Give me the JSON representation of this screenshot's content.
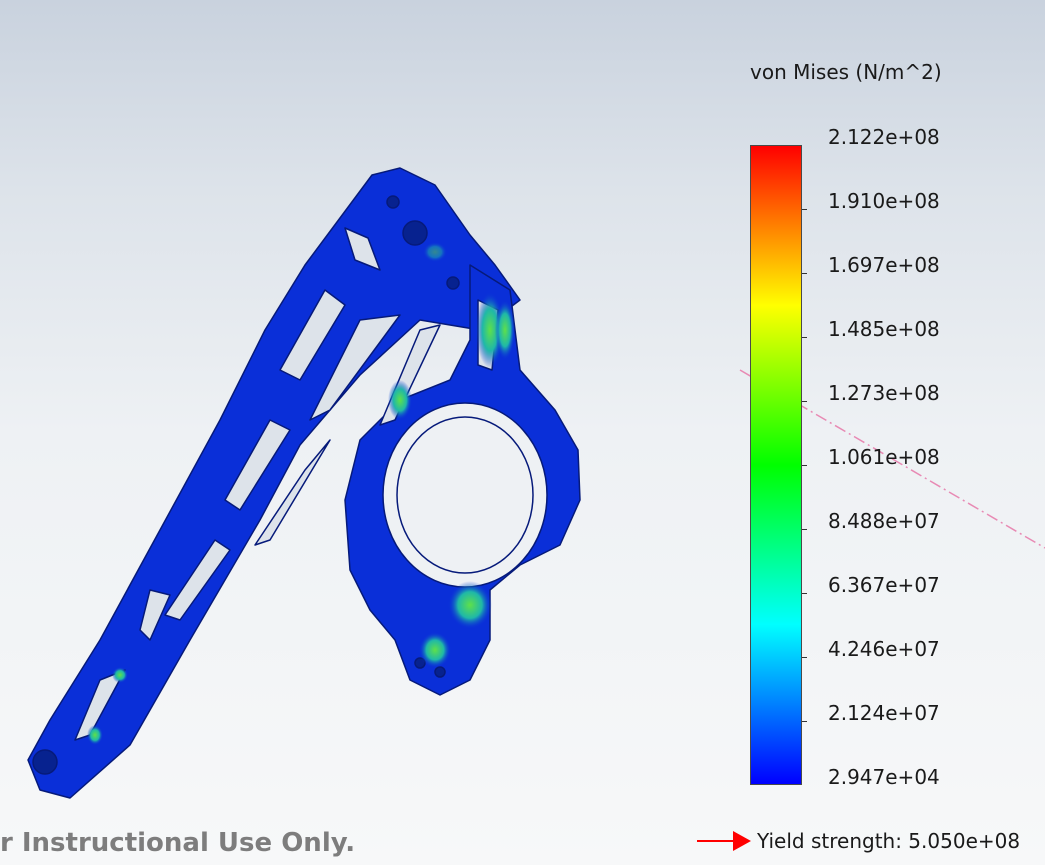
{
  "legend": {
    "title": "von Mises (N/m^2)",
    "max_color": "#ff0000",
    "min_color": "#0000ff",
    "values": [
      "2.122e+08",
      "1.910e+08",
      "1.697e+08",
      "1.485e+08",
      "1.273e+08",
      "1.061e+08",
      "8.488e+07",
      "6.367e+07",
      "4.246e+07",
      "2.124e+07",
      "2.947e+04"
    ]
  },
  "yield": {
    "label": "Yield strength: 5.050e+08",
    "arrow_icon": "red-arrow-icon",
    "arrow_color": "#ff0000"
  },
  "watermark": {
    "text": "r Instructional Use Only."
  },
  "model": {
    "dominant_color": "#0a2fd8",
    "hotspot_color": "#34d23a",
    "reference_line_color": "#e88ab4"
  }
}
